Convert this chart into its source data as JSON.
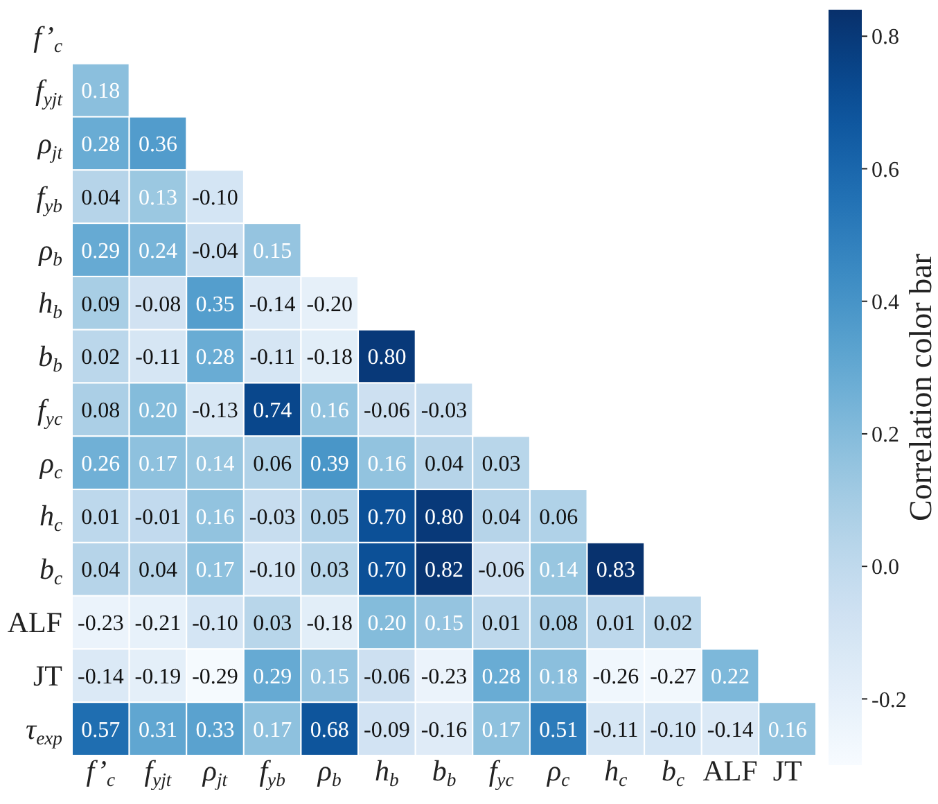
{
  "chart_data": {
    "type": "heatmap",
    "categories": [
      "f’$_{c}$",
      "f$_{yjt}$",
      "ρ$_{jt}$",
      "f$_{yb}$",
      "ρ$_{b}$",
      "h$_{b}$",
      "b$_{b}$",
      "f$_{yc}$",
      "ρ$_{c}$",
      "h$_{c}$",
      "b$_{c}$",
      "ALF",
      "JT"
    ],
    "y_categories": [
      "f’$_{c}$",
      "f$_{yjt}$",
      "ρ$_{jt}$",
      "f$_{yb}$",
      "ρ$_{b}$",
      "h$_{b}$",
      "b$_{b}$",
      "f$_{yc}$",
      "ρ$_{c}$",
      "h$_{c}$",
      "b$_{c}$",
      "ALF",
      "JT",
      "τ$_{exp}$"
    ],
    "cells": [
      [
        null,
        null,
        null,
        null,
        null,
        null,
        null,
        null,
        null,
        null,
        null,
        null,
        null
      ],
      [
        0.18,
        null,
        null,
        null,
        null,
        null,
        null,
        null,
        null,
        null,
        null,
        null,
        null
      ],
      [
        0.28,
        0.36,
        null,
        null,
        null,
        null,
        null,
        null,
        null,
        null,
        null,
        null,
        null
      ],
      [
        0.04,
        0.13,
        -0.1,
        null,
        null,
        null,
        null,
        null,
        null,
        null,
        null,
        null,
        null
      ],
      [
        0.29,
        0.24,
        -0.04,
        0.15,
        null,
        null,
        null,
        null,
        null,
        null,
        null,
        null,
        null
      ],
      [
        0.09,
        -0.08,
        0.35,
        -0.14,
        -0.2,
        null,
        null,
        null,
        null,
        null,
        null,
        null,
        null
      ],
      [
        0.02,
        -0.11,
        0.28,
        -0.11,
        -0.18,
        0.8,
        null,
        null,
        null,
        null,
        null,
        null,
        null
      ],
      [
        0.08,
        0.2,
        -0.13,
        0.74,
        0.16,
        -0.06,
        -0.03,
        null,
        null,
        null,
        null,
        null,
        null
      ],
      [
        0.26,
        0.17,
        0.14,
        0.06,
        0.39,
        0.16,
        0.04,
        0.03,
        null,
        null,
        null,
        null,
        null
      ],
      [
        0.01,
        -0.01,
        0.16,
        -0.03,
        0.05,
        0.7,
        0.8,
        0.04,
        0.06,
        null,
        null,
        null,
        null
      ],
      [
        0.04,
        0.04,
        0.17,
        -0.1,
        0.03,
        0.7,
        0.82,
        -0.06,
        0.14,
        0.83,
        null,
        null,
        null
      ],
      [
        -0.23,
        -0.21,
        -0.1,
        0.03,
        -0.18,
        0.2,
        0.15,
        0.01,
        0.08,
        0.01,
        0.02,
        null,
        null
      ],
      [
        -0.14,
        -0.19,
        -0.29,
        0.29,
        0.15,
        -0.06,
        -0.23,
        0.28,
        0.18,
        -0.26,
        -0.27,
        0.22,
        null
      ],
      [
        0.57,
        0.31,
        0.33,
        0.17,
        0.68,
        -0.09,
        -0.16,
        0.17,
        0.51,
        -0.11,
        -0.1,
        -0.14,
        0.16
      ]
    ],
    "cell_labels": [
      [
        null,
        null,
        null,
        null,
        null,
        null,
        null,
        null,
        null,
        null,
        null,
        null,
        null
      ],
      [
        "0.18",
        null,
        null,
        null,
        null,
        null,
        null,
        null,
        null,
        null,
        null,
        null,
        null
      ],
      [
        "0.28",
        "0.36",
        null,
        null,
        null,
        null,
        null,
        null,
        null,
        null,
        null,
        null,
        null
      ],
      [
        "0.04",
        "0.13",
        "-0.10",
        null,
        null,
        null,
        null,
        null,
        null,
        null,
        null,
        null,
        null
      ],
      [
        "0.29",
        "0.24",
        "-0.04",
        "0.15",
        null,
        null,
        null,
        null,
        null,
        null,
        null,
        null,
        null
      ],
      [
        "0.09",
        "-0.08",
        "0.35",
        "-0.14",
        "-0.20",
        null,
        null,
        null,
        null,
        null,
        null,
        null,
        null
      ],
      [
        "0.02",
        "-0.11",
        "0.28",
        "-0.11",
        "-0.18",
        "0.80",
        null,
        null,
        null,
        null,
        null,
        null,
        null
      ],
      [
        "0.08",
        "0.20",
        "-0.13",
        "0.74",
        "0.16",
        "-0.06",
        "-0.03",
        null,
        null,
        null,
        null,
        null,
        null
      ],
      [
        "0.26",
        "0.17",
        "0.14",
        "0.06",
        "0.39",
        "0.16",
        "0.04",
        "0.03",
        null,
        null,
        null,
        null,
        null
      ],
      [
        "0.01",
        "-0.01",
        "0.16",
        "-0.03",
        "0.05",
        "0.70",
        "0.80",
        "0.04",
        "0.06",
        null,
        null,
        null,
        null
      ],
      [
        "0.04",
        "0.04",
        "0.17",
        "-0.10",
        "0.03",
        "0.70",
        "0.82",
        "-0.06",
        "0.14",
        "0.83",
        null,
        null,
        null
      ],
      [
        "-0.23",
        "-0.21",
        "-0.10",
        "0.03",
        "-0.18",
        "0.20",
        "0.15",
        "0.01",
        "0.08",
        "0.01",
        "0.02",
        null,
        null
      ],
      [
        "-0.14",
        "-0.19",
        "-0.29",
        "0.29",
        "0.15",
        "-0.06",
        "-0.23",
        "0.28",
        "0.18",
        "-0.26",
        "-0.27",
        "0.22",
        null
      ],
      [
        "0.57",
        "0.31",
        "0.33",
        "0.17",
        "0.68",
        "-0.09",
        "-0.16",
        "0.17",
        "0.51",
        "-0.11",
        "-0.10",
        "-0.14",
        "0.16"
      ]
    ],
    "clabel": "Correlation color bar",
    "clim": [
      -0.3,
      0.84
    ],
    "cticks": [
      {
        "value": -0.2,
        "label": "-0.2"
      },
      {
        "value": 0,
        "label": "0.0"
      },
      {
        "value": 0.2,
        "label": "0.2"
      },
      {
        "value": 0.4,
        "label": "0.4"
      },
      {
        "value": 0.6,
        "label": "0.6"
      },
      {
        "value": 0.8,
        "label": "0.8"
      }
    ]
  }
}
